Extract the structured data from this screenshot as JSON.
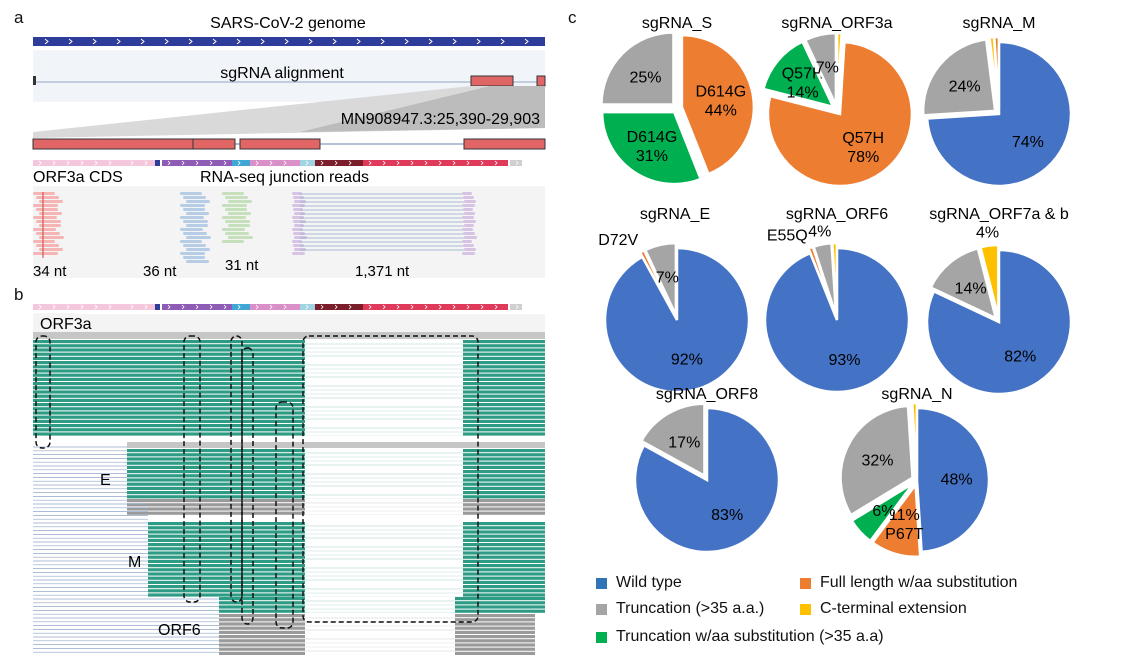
{
  "panels": {
    "a": "a",
    "b": "b",
    "c": "c"
  },
  "panel_a": {
    "genome_title": "SARS-CoV-2 genome",
    "alignment_title": "sgRNA alignment",
    "region_label": "MN908947.3:25,390-29,903",
    "cds_label": "ORF3a CDS",
    "junction_label": "RNA-seq junction reads",
    "read_lengths": [
      "34 nt",
      "36 nt",
      "31 nt",
      "1,371 nt"
    ]
  },
  "panel_b": {
    "labels": [
      "ORF3a",
      "E",
      "M",
      "ORF6"
    ]
  },
  "colors": {
    "wild_type": "#4472c4",
    "full_length_sub": "#ed7d31",
    "truncation": "#a5a5a5",
    "c_terminal_ext": "#ffc000",
    "truncation_sub": "#00b050",
    "track_blue": "#2e3d9a",
    "read_green": "#2e9c84",
    "exon_red": "#e06666"
  },
  "legend": [
    {
      "label": "Wild type",
      "color": "#2f75b5"
    },
    {
      "label": "Full length w/aa substitution",
      "color": "#ed7d31"
    },
    {
      "label": "Truncation (>35 a.a.)",
      "color": "#a5a5a5"
    },
    {
      "label": "C-terminal extension",
      "color": "#ffc000"
    },
    {
      "label": "Truncation w/aa substitution (>35 a.a)",
      "color": "#00b050"
    }
  ],
  "chart_data": [
    {
      "type": "pie",
      "title": "sgRNA_S",
      "slices": [
        {
          "category": "full_length_sub",
          "value": 44,
          "label": "D614G\n44%"
        },
        {
          "category": "truncation_sub",
          "value": 31,
          "label": "D614G\n31%"
        },
        {
          "category": "truncation",
          "value": 25,
          "label": "25%"
        }
      ]
    },
    {
      "type": "pie",
      "title": "sgRNA_ORF3a",
      "slices": [
        {
          "category": "c_terminal_ext",
          "value": 1,
          "label": ""
        },
        {
          "category": "full_length_sub",
          "value": 78,
          "label": "Q57H\n78%"
        },
        {
          "category": "truncation_sub",
          "value": 14,
          "label": "Q57H\n14%"
        },
        {
          "category": "truncation",
          "value": 7,
          "label": "7%"
        }
      ]
    },
    {
      "type": "pie",
      "title": "sgRNA_M",
      "slices": [
        {
          "category": "wild_type",
          "value": 74,
          "label": "74%"
        },
        {
          "category": "truncation",
          "value": 24,
          "label": "24%"
        },
        {
          "category": "c_terminal_ext",
          "value": 1,
          "label": ""
        },
        {
          "category": "full_length_sub",
          "value": 1,
          "label": ""
        }
      ]
    },
    {
      "type": "pie",
      "title": "sgRNA_E",
      "slices": [
        {
          "category": "wild_type",
          "value": 92,
          "label": "92%"
        },
        {
          "category": "full_length_sub",
          "value": 1,
          "label": "D72V"
        },
        {
          "category": "truncation",
          "value": 7,
          "label": "7%"
        }
      ]
    },
    {
      "type": "pie",
      "title": "sgRNA_ORF6",
      "slices": [
        {
          "category": "wild_type",
          "value": 93,
          "label": "93%"
        },
        {
          "category": "full_length_sub",
          "value": 1,
          "label": "E55Q"
        },
        {
          "category": "truncation",
          "value": 4,
          "label": "4%"
        },
        {
          "category": "c_terminal_ext",
          "value": 1,
          "label": ""
        }
      ]
    },
    {
      "type": "pie",
      "title": "sgRNA_ORF7a & b",
      "slices": [
        {
          "category": "wild_type",
          "value": 82,
          "label": "82%"
        },
        {
          "category": "truncation",
          "value": 14,
          "label": "14%"
        },
        {
          "category": "c_terminal_ext",
          "value": 4,
          "label": "4%"
        }
      ]
    },
    {
      "type": "pie",
      "title": "sgRNA_ORF8",
      "slices": [
        {
          "category": "wild_type",
          "value": 83,
          "label": "83%"
        },
        {
          "category": "truncation",
          "value": 17,
          "label": "17%"
        }
      ]
    },
    {
      "type": "pie",
      "title": "sgRNA_N",
      "slices": [
        {
          "category": "wild_type",
          "value": 48,
          "label": "48%"
        },
        {
          "category": "full_length_sub",
          "value": 11,
          "label": "11%\nP67T"
        },
        {
          "category": "truncation_sub",
          "value": 6,
          "label": "6%"
        },
        {
          "category": "truncation",
          "value": 32,
          "label": "32%"
        },
        {
          "category": "c_terminal_ext",
          "value": 1,
          "label": ""
        }
      ]
    }
  ]
}
